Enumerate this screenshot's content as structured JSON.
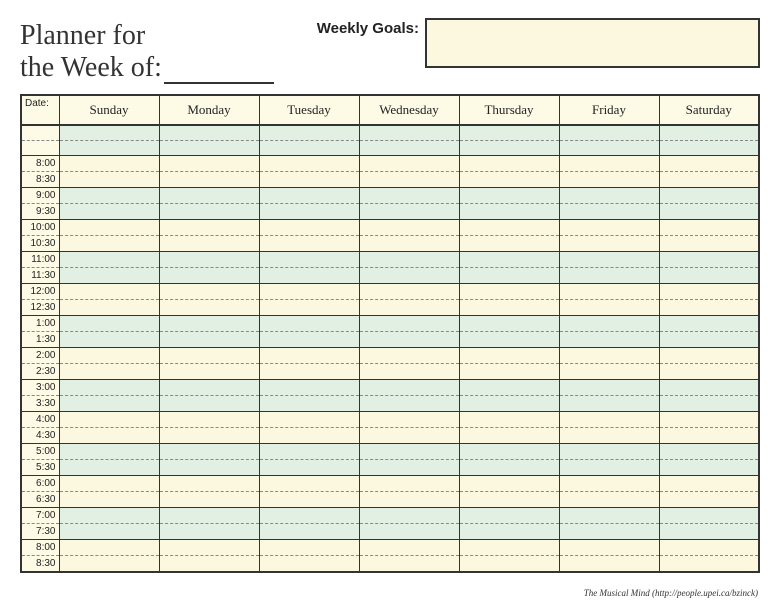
{
  "title": {
    "line1": "Planner for",
    "line2": "the Week of:"
  },
  "goals_label": "Weekly Goals:",
  "date_label": "Date:",
  "days": [
    "Sunday",
    "Monday",
    "Tuesday",
    "Wednesday",
    "Thursday",
    "Friday",
    "Saturday"
  ],
  "rows": [
    {
      "label": "",
      "band": "g",
      "top": true
    },
    {
      "label": "",
      "band": "g"
    },
    {
      "label": "8:00",
      "band": "y",
      "top": true
    },
    {
      "label": "8:30",
      "band": "y"
    },
    {
      "label": "9:00",
      "band": "g",
      "top": true
    },
    {
      "label": "9:30",
      "band": "g"
    },
    {
      "label": "10:00",
      "band": "y",
      "top": true
    },
    {
      "label": "10:30",
      "band": "y"
    },
    {
      "label": "11:00",
      "band": "g",
      "top": true
    },
    {
      "label": "11:30",
      "band": "g"
    },
    {
      "label": "12:00",
      "band": "y",
      "top": true
    },
    {
      "label": "12:30",
      "band": "y"
    },
    {
      "label": "1:00",
      "band": "g",
      "top": true
    },
    {
      "label": "1:30",
      "band": "g"
    },
    {
      "label": "2:00",
      "band": "y",
      "top": true
    },
    {
      "label": "2:30",
      "band": "y"
    },
    {
      "label": "3:00",
      "band": "g",
      "top": true
    },
    {
      "label": "3:30",
      "band": "g"
    },
    {
      "label": "4:00",
      "band": "y",
      "top": true
    },
    {
      "label": "4:30",
      "band": "y"
    },
    {
      "label": "5:00",
      "band": "g",
      "top": true
    },
    {
      "label": "5:30",
      "band": "g"
    },
    {
      "label": "6:00",
      "band": "y",
      "top": true
    },
    {
      "label": "6:30",
      "band": "y"
    },
    {
      "label": "7:00",
      "band": "g",
      "top": true
    },
    {
      "label": "7:30",
      "band": "g"
    },
    {
      "label": "8:00",
      "band": "y",
      "top": true
    },
    {
      "label": "8:30",
      "band": "y",
      "bottom": true
    }
  ],
  "colors": {
    "green": "#e2efe3",
    "yellow": "#fbf8df",
    "header_bg": "#fdfbe6",
    "border": "#333333"
  },
  "footer": "The Musical Mind (http://people.upei.ca/bzinck)"
}
